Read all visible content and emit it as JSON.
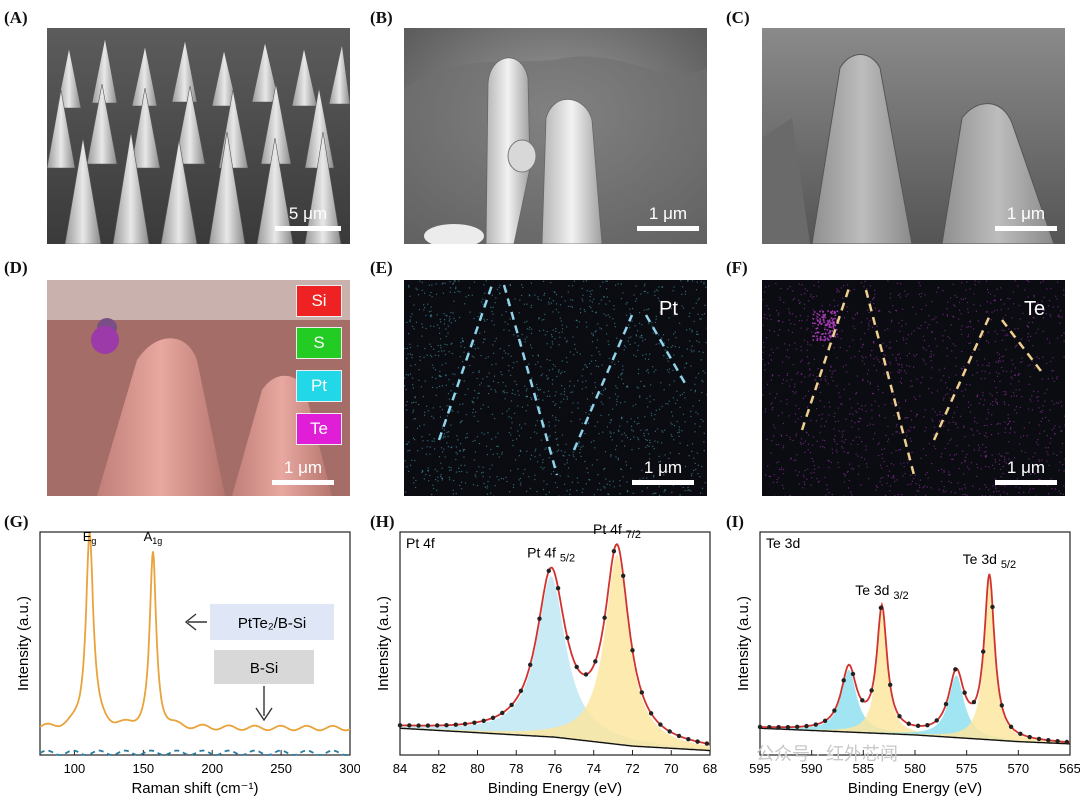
{
  "panels": {
    "A": {
      "label": "(A)",
      "scale": "5 μm"
    },
    "B": {
      "label": "(B)",
      "scale": "1 μm"
    },
    "C": {
      "label": "(C)",
      "scale": "1 μm"
    },
    "D": {
      "label": "(D)",
      "scale": "1 μm",
      "legend": [
        "Si",
        "S",
        "Pt",
        "Te"
      ],
      "legend_colors": [
        "#ee2222",
        "#22cc22",
        "#22d7e8",
        "#e01ed8"
      ]
    },
    "E": {
      "label": "(E)",
      "scale": "1 μm",
      "element": "Pt",
      "dot_color": "#4fb8c8",
      "line_color": "#8fd4ea"
    },
    "F": {
      "label": "(F)",
      "scale": "1 μm",
      "element": "Te",
      "dot_color": "#b03cc0",
      "line_color": "#f0d090"
    },
    "G": {
      "label": "(G)"
    },
    "H": {
      "label": "(H)"
    },
    "I": {
      "label": "(I)"
    }
  },
  "watermark": "公众号 · 红外芯闻",
  "chart_data": [
    {
      "id": "G",
      "type": "line",
      "xlabel": "Raman shift (cm⁻¹)",
      "ylabel": "Intensity (a.u.)",
      "xlim": [
        75,
        300
      ],
      "x_ticks": [
        "100",
        "150",
        "200",
        "250",
        "300"
      ],
      "x_tick_values": [
        100,
        150,
        200,
        250,
        300
      ],
      "peaks": [
        {
          "name": "E",
          "sub": "g",
          "x": 111
        },
        {
          "name": "A",
          "sub": "1g",
          "x": 157
        }
      ],
      "series": [
        {
          "name": "PtTe₂/B-Si",
          "color": "#e8a33b",
          "dashed": false,
          "baseline": 0.12,
          "peak_positions": [
            111,
            157
          ],
          "peak_heights": [
            0.88,
            0.78
          ],
          "peak_widths": [
            3.2,
            2.8
          ]
        },
        {
          "name": "B-Si",
          "color": "#2a7da0",
          "dashed": true,
          "baseline": 0.01,
          "peak_positions": [],
          "peak_heights": [],
          "peak_widths": []
        }
      ],
      "grid": false
    },
    {
      "id": "H",
      "type": "line",
      "title": "Pt 4f",
      "xlabel": "Binding Energy (eV)",
      "ylabel": "Intensity (a.u.)",
      "xlim": [
        84,
        68
      ],
      "x_ticks": [
        "84",
        "82",
        "80",
        "78",
        "76",
        "74",
        "72",
        "70",
        "68"
      ],
      "x_tick_values": [
        84,
        82,
        80,
        78,
        76,
        74,
        72,
        70,
        68
      ],
      "peaks": [
        {
          "label": "Pt 4f",
          "sub": "5/2",
          "x": 76.2,
          "height": 0.72,
          "width": 0.9,
          "fill": "#bfe7f5"
        },
        {
          "label": "Pt 4f",
          "sub": "7/2",
          "x": 72.8,
          "height": 0.85,
          "width": 0.75,
          "fill": "#fbe6a0"
        }
      ],
      "background": [
        [
          84,
          0.12
        ],
        [
          76,
          0.08
        ],
        [
          72,
          0.04
        ],
        [
          68,
          0.02
        ]
      ],
      "grid": false
    },
    {
      "id": "I",
      "type": "line",
      "title": "Te 3d",
      "xlabel": "Binding Energy (eV)",
      "ylabel": "Intensity (a.u.)",
      "xlim": [
        595,
        565
      ],
      "x_ticks": [
        "595",
        "590",
        "585",
        "580",
        "575",
        "570",
        "565"
      ],
      "x_tick_values": [
        595,
        590,
        585,
        580,
        575,
        570,
        565
      ],
      "peaks": [
        {
          "x": 586.4,
          "height": 0.28,
          "width": 0.9,
          "fill": "#8fe0ee"
        },
        {
          "label": "Te 3d",
          "sub": "3/2",
          "x": 583.2,
          "height": 0.55,
          "width": 0.6,
          "fill": "#fbe6a0"
        },
        {
          "x": 576.0,
          "height": 0.28,
          "width": 0.9,
          "fill": "#8fe0ee"
        },
        {
          "label": "Te 3d",
          "sub": "5/2",
          "x": 572.8,
          "height": 0.72,
          "width": 0.6,
          "fill": "#fbe6a0"
        }
      ],
      "background": [
        [
          595,
          0.12
        ],
        [
          580,
          0.09
        ],
        [
          570,
          0.06
        ],
        [
          565,
          0.05
        ]
      ],
      "grid": false
    }
  ]
}
